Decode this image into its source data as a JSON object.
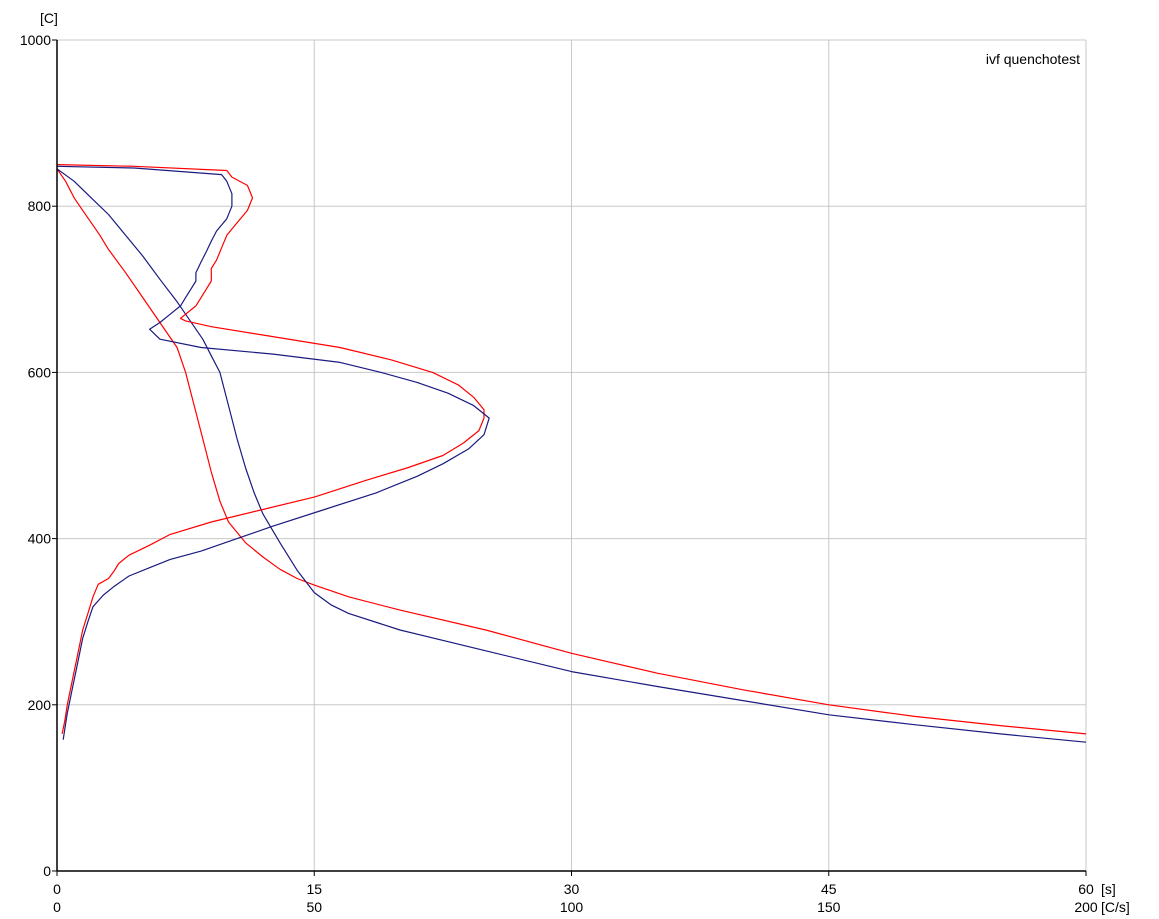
{
  "chart_data": {
    "type": "line",
    "title": "",
    "annotation": "ivf quenchotest",
    "y_unit_label": "[C]",
    "x_unit_label_time": "[s]",
    "x_unit_label_rate": "[C/s]",
    "ylim": [
      0,
      1000
    ],
    "y_ticks": [
      "0",
      "200",
      "400",
      "600",
      "800",
      "1000"
    ],
    "x_time_lim": [
      0,
      60
    ],
    "x_time_ticks": [
      "0",
      "15",
      "30",
      "45",
      "60"
    ],
    "x_rate_lim": [
      0,
      200
    ],
    "x_rate_ticks": [
      "0",
      "50",
      "100",
      "150",
      "200"
    ],
    "grid": true,
    "legend": "none",
    "series": [
      {
        "kind": "temperature_vs_time",
        "x_axis": "time",
        "color": "#ff0000",
        "points": [
          [
            0,
            845
          ],
          [
            0.5,
            830
          ],
          [
            1,
            810
          ],
          [
            1.5,
            795
          ],
          [
            2,
            780
          ],
          [
            2.5,
            765
          ],
          [
            3,
            748
          ],
          [
            4,
            720
          ],
          [
            5,
            690
          ],
          [
            6,
            660
          ],
          [
            7,
            630
          ],
          [
            7.5,
            600
          ],
          [
            8,
            560
          ],
          [
            8.5,
            520
          ],
          [
            9,
            480
          ],
          [
            9.5,
            445
          ],
          [
            10,
            420
          ],
          [
            11,
            395
          ],
          [
            12,
            378
          ],
          [
            13,
            363
          ],
          [
            14,
            352
          ],
          [
            15,
            344
          ],
          [
            17,
            330
          ],
          [
            20,
            314
          ],
          [
            25,
            290
          ],
          [
            30,
            262
          ],
          [
            35,
            238
          ],
          [
            40,
            218
          ],
          [
            45,
            200
          ],
          [
            50,
            186
          ],
          [
            55,
            175
          ],
          [
            60,
            165
          ]
        ]
      },
      {
        "kind": "temperature_vs_time",
        "x_axis": "time",
        "color": "#1a1a80",
        "points": [
          [
            0,
            845
          ],
          [
            1,
            830
          ],
          [
            2,
            810
          ],
          [
            3,
            790
          ],
          [
            4,
            765
          ],
          [
            5,
            740
          ],
          [
            6,
            712
          ],
          [
            7,
            685
          ],
          [
            8,
            655
          ],
          [
            8.5,
            640
          ],
          [
            9,
            620
          ],
          [
            9.5,
            600
          ],
          [
            10,
            560
          ],
          [
            10.5,
            520
          ],
          [
            11,
            485
          ],
          [
            11.5,
            455
          ],
          [
            12,
            430
          ],
          [
            13,
            395
          ],
          [
            14,
            362
          ],
          [
            15,
            335
          ],
          [
            16,
            320
          ],
          [
            17,
            310
          ],
          [
            20,
            290
          ],
          [
            25,
            265
          ],
          [
            30,
            240
          ],
          [
            35,
            222
          ],
          [
            40,
            205
          ],
          [
            45,
            188
          ],
          [
            50,
            176
          ],
          [
            55,
            165
          ],
          [
            60,
            155
          ]
        ]
      },
      {
        "kind": "temperature_vs_cooling_rate",
        "x_axis": "rate",
        "color": "#ff0000",
        "points": [
          [
            0,
            850
          ],
          [
            15,
            848
          ],
          [
            33,
            843
          ],
          [
            34,
            835
          ],
          [
            37,
            825
          ],
          [
            38,
            810
          ],
          [
            37,
            795
          ],
          [
            35,
            780
          ],
          [
            33,
            765
          ],
          [
            32,
            750
          ],
          [
            31,
            735
          ],
          [
            30,
            725
          ],
          [
            30,
            710
          ],
          [
            29,
            700
          ],
          [
            28,
            690
          ],
          [
            27,
            680
          ],
          [
            25,
            670
          ],
          [
            24,
            665
          ],
          [
            25,
            662
          ],
          [
            30,
            655
          ],
          [
            40,
            645
          ],
          [
            55,
            630
          ],
          [
            65,
            615
          ],
          [
            73,
            600
          ],
          [
            78,
            585
          ],
          [
            81,
            570
          ],
          [
            83,
            555
          ],
          [
            83,
            545
          ],
          [
            82,
            530
          ],
          [
            79,
            515
          ],
          [
            75,
            500
          ],
          [
            68,
            485
          ],
          [
            60,
            470
          ],
          [
            50,
            450
          ],
          [
            40,
            435
          ],
          [
            30,
            420
          ],
          [
            22,
            405
          ],
          [
            18,
            392
          ],
          [
            14,
            380
          ],
          [
            12,
            370
          ],
          [
            11,
            360
          ],
          [
            10,
            352
          ],
          [
            8,
            345
          ],
          [
            7,
            330
          ],
          [
            6,
            310
          ],
          [
            5,
            290
          ],
          [
            4,
            260
          ],
          [
            3,
            230
          ],
          [
            2,
            200
          ],
          [
            1.5,
            180
          ],
          [
            1,
            165
          ]
        ]
      },
      {
        "kind": "temperature_vs_cooling_rate",
        "x_axis": "rate",
        "color": "#1a1a80",
        "points": [
          [
            0,
            848
          ],
          [
            15,
            846
          ],
          [
            32,
            838
          ],
          [
            33,
            830
          ],
          [
            34,
            815
          ],
          [
            34,
            800
          ],
          [
            33,
            785
          ],
          [
            31,
            770
          ],
          [
            30,
            758
          ],
          [
            29,
            745
          ],
          [
            28,
            733
          ],
          [
            27,
            720
          ],
          [
            27,
            710
          ],
          [
            26,
            700
          ],
          [
            25,
            690
          ],
          [
            24,
            680
          ],
          [
            22,
            670
          ],
          [
            20,
            660
          ],
          [
            18,
            652
          ],
          [
            20,
            640
          ],
          [
            28,
            630
          ],
          [
            42,
            622
          ],
          [
            55,
            612
          ],
          [
            63,
            600
          ],
          [
            70,
            588
          ],
          [
            76,
            575
          ],
          [
            81,
            560
          ],
          [
            84,
            545
          ],
          [
            83,
            525
          ],
          [
            80,
            508
          ],
          [
            75,
            490
          ],
          [
            70,
            475
          ],
          [
            62,
            455
          ],
          [
            52,
            435
          ],
          [
            42,
            415
          ],
          [
            35,
            400
          ],
          [
            28,
            385
          ],
          [
            22,
            375
          ],
          [
            18,
            365
          ],
          [
            14,
            355
          ],
          [
            11,
            342
          ],
          [
            9,
            332
          ],
          [
            7,
            318
          ],
          [
            6,
            300
          ],
          [
            5,
            280
          ],
          [
            4,
            250
          ],
          [
            3,
            220
          ],
          [
            2,
            190
          ],
          [
            1.5,
            170
          ],
          [
            1.2,
            158
          ]
        ]
      }
    ]
  }
}
